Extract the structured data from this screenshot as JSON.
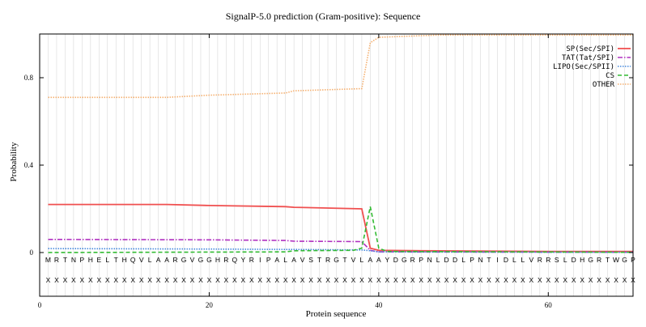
{
  "chart_data": {
    "type": "line",
    "title": "SignalP-5.0 prediction (Gram-positive):  Sequence",
    "xlabel": "Protein sequence",
    "ylabel": "Probability",
    "xlim": [
      0,
      70
    ],
    "ylim": [
      -0.2,
      1.0
    ],
    "x_ticks": [
      0,
      20,
      40,
      60
    ],
    "y_ticks": [
      0,
      0.4,
      0.8
    ],
    "y_tick_labels": [
      "0",
      "0.4",
      "0.8"
    ],
    "vertical_grid": true,
    "legend_position": "top-right",
    "sequence": "MRTNPHELTHQVLAARGVGGHRQYRIPALAVSTRGTVLAAYDGRPNLDDLPNTIDLLVRRSLDHGRTWGP",
    "annotation_row": "XXXXXXXXXXXXXXXXXXXXXXXXXXXXXXXXXXXXXXXXXXXXXXXXXXXXXXXXXXXXXXXXXXXXXX",
    "series": [
      {
        "name": "SP(Sec/SPI)",
        "color": "#f05050",
        "dash": "solid",
        "points": [
          [
            1,
            0.22
          ],
          [
            15,
            0.22
          ],
          [
            20,
            0.215
          ],
          [
            29,
            0.21
          ],
          [
            30,
            0.207
          ],
          [
            38,
            0.2
          ],
          [
            39,
            0.02
          ],
          [
            40,
            0.01
          ],
          [
            45,
            0.008
          ],
          [
            60,
            0.005
          ],
          [
            70,
            0.005
          ]
        ]
      },
      {
        "name": "TAT(Tat/SPI)",
        "color": "#b030c0",
        "dash": "dashdot",
        "points": [
          [
            1,
            0.06
          ],
          [
            20,
            0.058
          ],
          [
            29,
            0.055
          ],
          [
            30,
            0.052
          ],
          [
            38,
            0.05
          ],
          [
            39,
            0.01
          ],
          [
            40,
            0.003
          ],
          [
            70,
            0.001
          ]
        ]
      },
      {
        "name": "LIPO(Sec/SPII)",
        "color": "#4488dd",
        "dash": "dotted",
        "points": [
          [
            1,
            0.018
          ],
          [
            20,
            0.016
          ],
          [
            30,
            0.014
          ],
          [
            38,
            0.012
          ],
          [
            39,
            0.008
          ],
          [
            40,
            0.003
          ],
          [
            70,
            0.001
          ]
        ]
      },
      {
        "name": "CS",
        "color": "#33bb33",
        "dash": "dashed",
        "points": [
          [
            1,
            0.0
          ],
          [
            29,
            0.003
          ],
          [
            30,
            0.008
          ],
          [
            37,
            0.01
          ],
          [
            38,
            0.02
          ],
          [
            39,
            0.21
          ],
          [
            40,
            0.02
          ],
          [
            41,
            0.005
          ],
          [
            70,
            0.001
          ]
        ]
      },
      {
        "name": "OTHER",
        "color": "#f5b070",
        "dash": "dotted",
        "points": [
          [
            1,
            0.71
          ],
          [
            15,
            0.71
          ],
          [
            20,
            0.72
          ],
          [
            29,
            0.73
          ],
          [
            30,
            0.74
          ],
          [
            38,
            0.75
          ],
          [
            39,
            0.96
          ],
          [
            40,
            0.985
          ],
          [
            47,
            0.995
          ],
          [
            70,
            0.995
          ]
        ]
      }
    ]
  }
}
